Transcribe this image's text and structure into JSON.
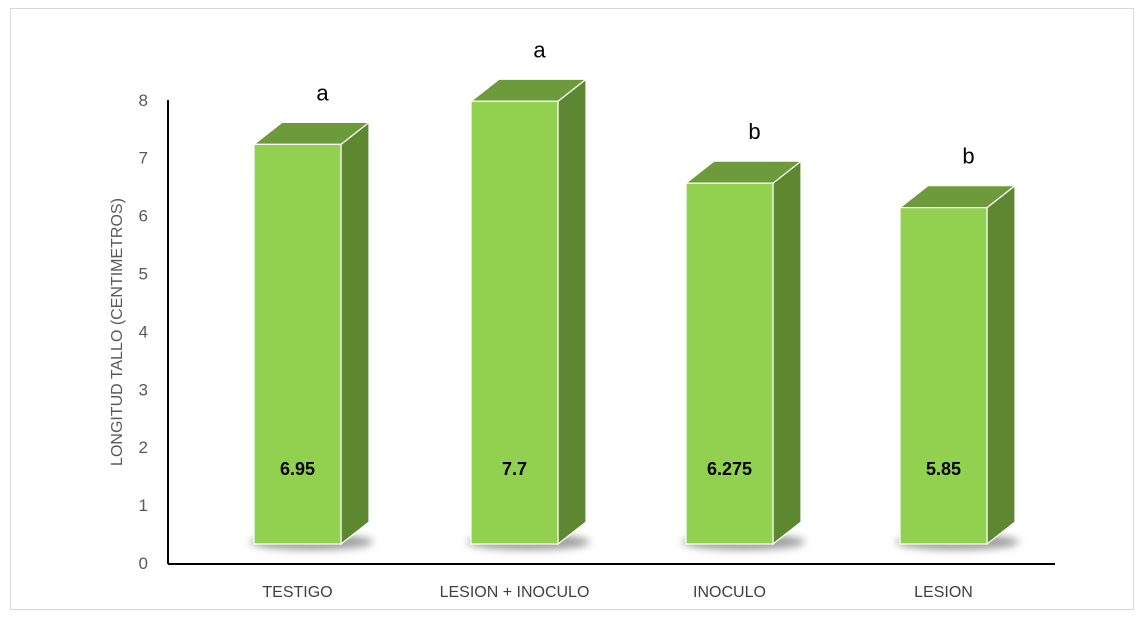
{
  "chart_data": {
    "type": "bar",
    "title": "",
    "xlabel": "",
    "ylabel": "LONGITUD TALLO (CENTIMETROS)",
    "ylim": [
      0,
      8
    ],
    "yticks": [
      "0",
      "1",
      "2",
      "3",
      "4",
      "5",
      "6",
      "7",
      "8"
    ],
    "categories": [
      "TESTIGO",
      "LESION + INOCULO",
      "INOCULO",
      "LESION"
    ],
    "values": [
      6.95,
      7.7,
      6.275,
      5.85
    ],
    "value_labels": [
      "6.95",
      "7.7",
      "6.275",
      "5.85"
    ],
    "group_letters": [
      "a",
      "a",
      "b",
      "b"
    ],
    "grid": false,
    "legend": "none",
    "style": "3d-column",
    "colors": {
      "front": "#92d050",
      "side": "#5e8732",
      "top": "#6d9a3b",
      "shadow": "#7f7f7f"
    }
  }
}
